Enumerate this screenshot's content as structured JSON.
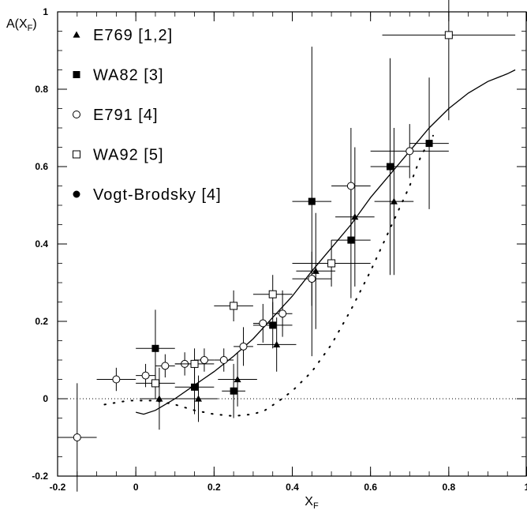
{
  "chart_data": {
    "type": "scatter",
    "xlim": [
      -0.2,
      1.0
    ],
    "ylim": [
      -0.2,
      1.0
    ],
    "grid": false,
    "legend_position": "top-left",
    "xlabel": {
      "main": "X",
      "sub": "F"
    },
    "ylabel": {
      "main": "A(X",
      "sub": "F",
      "close": ")"
    },
    "x_ticks": [
      "-0.2",
      "0",
      "0.2",
      "0.4",
      "0.6",
      "0.8",
      "1"
    ],
    "x_tick_values": [
      -0.2,
      0,
      0.2,
      0.4,
      0.6,
      0.8,
      1.0
    ],
    "y_ticks": [
      "-0.2",
      "0",
      "0.2",
      "0.4",
      "0.6",
      "0.8",
      "1"
    ],
    "y_tick_values": [
      -0.2,
      0,
      0.2,
      0.4,
      0.6,
      0.8,
      1.0
    ],
    "reference_line": {
      "y": 0,
      "style": "dotted"
    },
    "series": [
      {
        "name": "E769 [1,2]",
        "marker": "filled-triangle",
        "points": [
          {
            "x": 0.06,
            "y": 0.0,
            "xerr": 0.05,
            "yerr": 0.08
          },
          {
            "x": 0.16,
            "y": 0.0,
            "xerr": 0.05,
            "yerr": 0.06
          },
          {
            "x": 0.26,
            "y": 0.05,
            "xerr": 0.05,
            "yerr": 0.07
          },
          {
            "x": 0.36,
            "y": 0.14,
            "xerr": 0.05,
            "yerr": 0.07
          },
          {
            "x": 0.46,
            "y": 0.33,
            "xerr": 0.05,
            "yerr": 0.15
          },
          {
            "x": 0.56,
            "y": 0.47,
            "xerr": 0.05,
            "yerr": 0.18
          },
          {
            "x": 0.66,
            "y": 0.51,
            "xerr": 0.05,
            "yerr": 0.19
          }
        ]
      },
      {
        "name": "WA82 [3]",
        "marker": "filled-square",
        "points": [
          {
            "x": 0.05,
            "y": 0.13,
            "xerr": 0.05,
            "yerr": 0.1
          },
          {
            "x": 0.15,
            "y": 0.03,
            "xerr": 0.05,
            "yerr": 0.07
          },
          {
            "x": 0.25,
            "y": 0.02,
            "xerr": 0.03,
            "yerr": 0.07
          },
          {
            "x": 0.35,
            "y": 0.19,
            "xerr": 0.05,
            "yerr": 0.06
          },
          {
            "x": 0.45,
            "y": 0.51,
            "xerr": 0.05,
            "yerr": 0.4
          },
          {
            "x": 0.55,
            "y": 0.41,
            "xerr": 0.05,
            "yerr": 0.15
          },
          {
            "x": 0.65,
            "y": 0.6,
            "xerr": 0.05,
            "yerr": 0.28
          },
          {
            "x": 0.75,
            "y": 0.66,
            "xerr": 0.05,
            "yerr": 0.17
          }
        ]
      },
      {
        "name": "E791 [4]",
        "marker": "open-circle",
        "points": [
          {
            "x": -0.15,
            "y": -0.1,
            "xerr": 0.05,
            "yerr": 0.14
          },
          {
            "x": -0.05,
            "y": 0.05,
            "xerr": 0.05,
            "yerr": 0.03
          },
          {
            "x": 0.025,
            "y": 0.06,
            "xerr": 0.025,
            "yerr": 0.03
          },
          {
            "x": 0.075,
            "y": 0.085,
            "xerr": 0.025,
            "yerr": 0.03
          },
          {
            "x": 0.125,
            "y": 0.09,
            "xerr": 0.025,
            "yerr": 0.03
          },
          {
            "x": 0.175,
            "y": 0.1,
            "xerr": 0.025,
            "yerr": 0.03
          },
          {
            "x": 0.225,
            "y": 0.1,
            "xerr": 0.025,
            "yerr": 0.03
          },
          {
            "x": 0.275,
            "y": 0.135,
            "xerr": 0.025,
            "yerr": 0.05
          },
          {
            "x": 0.325,
            "y": 0.195,
            "xerr": 0.025,
            "yerr": 0.05
          },
          {
            "x": 0.375,
            "y": 0.22,
            "xerr": 0.025,
            "yerr": 0.06
          },
          {
            "x": 0.45,
            "y": 0.31,
            "xerr": 0.05,
            "yerr": 0.07
          },
          {
            "x": 0.55,
            "y": 0.55,
            "xerr": 0.05,
            "yerr": 0.15
          },
          {
            "x": 0.7,
            "y": 0.64,
            "xerr": 0.1,
            "yerr": 0.07
          }
        ]
      },
      {
        "name": "WA92 [5]",
        "marker": "open-square",
        "points": [
          {
            "x": 0.05,
            "y": 0.04,
            "xerr": 0.05,
            "yerr": 0.04
          },
          {
            "x": 0.15,
            "y": 0.09,
            "xerr": 0.05,
            "yerr": 0.04
          },
          {
            "x": 0.25,
            "y": 0.24,
            "xerr": 0.05,
            "yerr": 0.04
          },
          {
            "x": 0.35,
            "y": 0.27,
            "xerr": 0.05,
            "yerr": 0.05
          },
          {
            "x": 0.5,
            "y": 0.35,
            "xerr": 0.1,
            "yerr": 0.06
          },
          {
            "x": 0.8,
            "y": 0.94,
            "xerr": 0.17,
            "yerr": 0.22
          }
        ]
      },
      {
        "name": "Vogt-Brodsky [4]",
        "marker": "filled-circle",
        "points": []
      }
    ],
    "curves": [
      {
        "style": "solid",
        "points": [
          [
            0.0,
            -0.035
          ],
          [
            0.02,
            -0.04
          ],
          [
            0.05,
            -0.03
          ],
          [
            0.1,
            0.0
          ],
          [
            0.15,
            0.035
          ],
          [
            0.2,
            0.07
          ],
          [
            0.25,
            0.11
          ],
          [
            0.3,
            0.155
          ],
          [
            0.35,
            0.21
          ],
          [
            0.4,
            0.265
          ],
          [
            0.45,
            0.33
          ],
          [
            0.5,
            0.39
          ],
          [
            0.55,
            0.45
          ],
          [
            0.6,
            0.52
          ],
          [
            0.65,
            0.58
          ],
          [
            0.7,
            0.64
          ],
          [
            0.75,
            0.7
          ],
          [
            0.8,
            0.75
          ],
          [
            0.85,
            0.79
          ],
          [
            0.9,
            0.82
          ],
          [
            0.95,
            0.84
          ],
          [
            0.97,
            0.85
          ]
        ]
      },
      {
        "style": "dotted",
        "points": [
          [
            -0.08,
            -0.015
          ],
          [
            -0.02,
            -0.005
          ],
          [
            0.05,
            -0.005
          ],
          [
            0.1,
            -0.015
          ],
          [
            0.15,
            -0.03
          ],
          [
            0.2,
            -0.04
          ],
          [
            0.25,
            -0.045
          ],
          [
            0.3,
            -0.04
          ],
          [
            0.33,
            -0.03
          ],
          [
            0.36,
            -0.01
          ],
          [
            0.4,
            0.02
          ],
          [
            0.45,
            0.07
          ],
          [
            0.5,
            0.14
          ],
          [
            0.55,
            0.23
          ],
          [
            0.6,
            0.33
          ],
          [
            0.65,
            0.44
          ],
          [
            0.7,
            0.55
          ],
          [
            0.73,
            0.63
          ],
          [
            0.76,
            0.68
          ]
        ]
      }
    ]
  }
}
